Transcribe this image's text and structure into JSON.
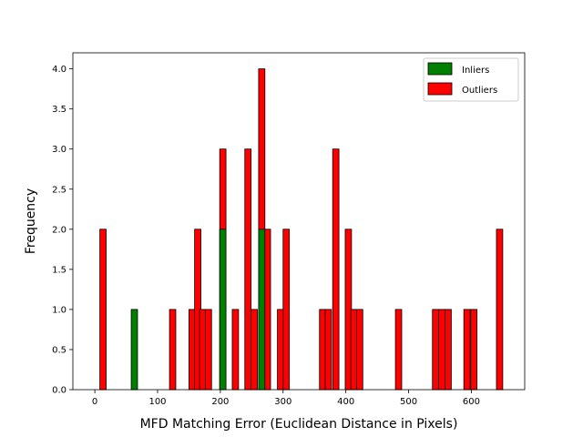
{
  "chart_data": {
    "type": "bar",
    "xlabel": "MFD Matching Error (Euclidean Distance in Pixels)",
    "ylabel": "Frequency",
    "xlim": [
      -35,
      685
    ],
    "ylim": [
      0,
      4.2
    ],
    "xticks": [
      0,
      100,
      200,
      300,
      400,
      500,
      600
    ],
    "yticks": [
      0.0,
      0.5,
      1.0,
      1.5,
      2.0,
      2.5,
      3.0,
      3.5,
      4.0
    ],
    "bin_width": 10,
    "legend_position": "top-right",
    "grid": false,
    "series": [
      {
        "name": "Inliers",
        "color": "#008000",
        "bars": [
          {
            "x": 63,
            "value": 1
          },
          {
            "x": 204,
            "value": 2
          },
          {
            "x": 266,
            "value": 2
          }
        ]
      },
      {
        "name": "Outliers",
        "color": "#ff0000",
        "bars": [
          {
            "x": 13,
            "value": 2
          },
          {
            "x": 124,
            "value": 1
          },
          {
            "x": 155,
            "value": 1
          },
          {
            "x": 164,
            "value": 2
          },
          {
            "x": 172,
            "value": 1
          },
          {
            "x": 181,
            "value": 1
          },
          {
            "x": 204,
            "value": 3
          },
          {
            "x": 224,
            "value": 1
          },
          {
            "x": 244,
            "value": 3
          },
          {
            "x": 254,
            "value": 1
          },
          {
            "x": 266,
            "value": 4
          },
          {
            "x": 275,
            "value": 2
          },
          {
            "x": 296,
            "value": 1
          },
          {
            "x": 305,
            "value": 2
          },
          {
            "x": 363,
            "value": 1
          },
          {
            "x": 372,
            "value": 1
          },
          {
            "x": 384,
            "value": 3
          },
          {
            "x": 404,
            "value": 2
          },
          {
            "x": 413,
            "value": 1
          },
          {
            "x": 422,
            "value": 1
          },
          {
            "x": 484,
            "value": 1
          },
          {
            "x": 543,
            "value": 1
          },
          {
            "x": 553,
            "value": 1
          },
          {
            "x": 563,
            "value": 1
          },
          {
            "x": 593,
            "value": 1
          },
          {
            "x": 604,
            "value": 1
          },
          {
            "x": 645,
            "value": 2
          }
        ]
      }
    ]
  }
}
